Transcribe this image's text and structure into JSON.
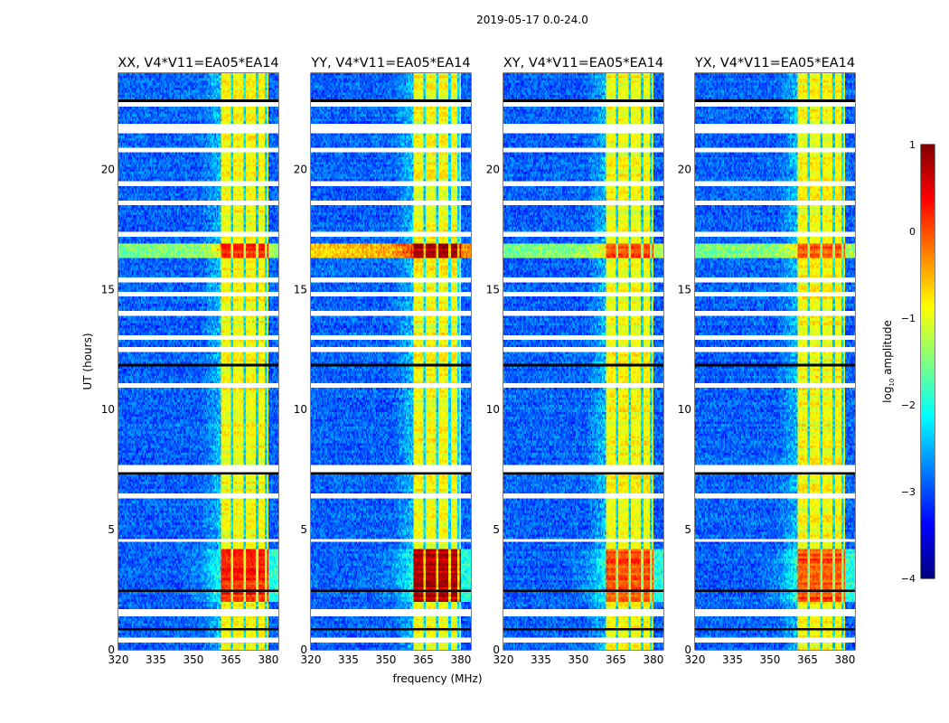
{
  "chart_data": {
    "type": "heatmap",
    "suptitle": "2019-05-17 0.0-24.0",
    "xlabel": "frequency (MHz)",
    "ylabel": "UT (hours)",
    "xlim": [
      320,
      384
    ],
    "ylim": [
      0,
      24
    ],
    "xticks": [
      "320",
      "335",
      "350",
      "365",
      "380"
    ],
    "xtick_values": [
      320,
      335,
      350,
      365,
      380
    ],
    "yticks": [
      "0",
      "5",
      "10",
      "15",
      "20"
    ],
    "ytick_values": [
      0,
      5,
      10,
      15,
      20
    ],
    "panels": [
      {
        "title": "XX, V4*V11=EA05*EA14",
        "rfi_row_strength": 0.8
      },
      {
        "title": "YY, V4*V11=EA05*EA14",
        "rfi_row_strength": 1.3
      },
      {
        "title": "XY, V4*V11=EA05*EA14",
        "rfi_row_strength": 0.6
      },
      {
        "title": "YX, V4*V11=EA05*EA14",
        "rfi_row_strength": 0.6
      }
    ],
    "background_level": -2.9,
    "rfi_band_mhz": [
      361,
      380
    ],
    "rfi_band_level": -0.9,
    "rfi_band_gaps_mhz": [
      365.3,
      370.5,
      375.5,
      378.8
    ],
    "strong_rfi_intervals_ut": [
      [
        2.0,
        4.2
      ],
      [
        16.3,
        16.9
      ]
    ],
    "flagged_ut_intervals": [
      [
        1.45,
        1.62
      ],
      [
        6.35,
        6.5
      ],
      [
        7.4,
        7.65
      ],
      [
        21.6,
        21.8
      ],
      [
        0.4,
        0.45
      ],
      [
        4.5,
        4.55
      ],
      [
        11.0,
        11.05
      ],
      [
        12.5,
        12.55
      ],
      [
        13.0,
        13.05
      ],
      [
        14.0,
        14.05
      ],
      [
        14.8,
        14.85
      ],
      [
        15.4,
        15.45
      ],
      [
        17.3,
        17.35
      ],
      [
        18.6,
        18.65
      ],
      [
        19.4,
        19.45
      ],
      [
        20.8,
        20.85
      ],
      [
        22.7,
        22.75
      ]
    ],
    "scan_boundaries_ut": [
      0.85,
      2.45,
      7.35,
      11.8,
      16.3,
      17.0,
      17.8,
      18.3,
      21.5,
      22.9
    ],
    "colorbar": {
      "label": "log10 amplitude",
      "label_base": "log",
      "label_sub": "10",
      "label_rest": " amplitude",
      "range": [
        -4,
        1
      ],
      "ticks": [
        "1",
        "0",
        "−1",
        "−2",
        "−3",
        "−4"
      ],
      "tick_values": [
        1,
        0,
        -1,
        -2,
        -3,
        -4
      ],
      "colormap": "jet"
    }
  }
}
